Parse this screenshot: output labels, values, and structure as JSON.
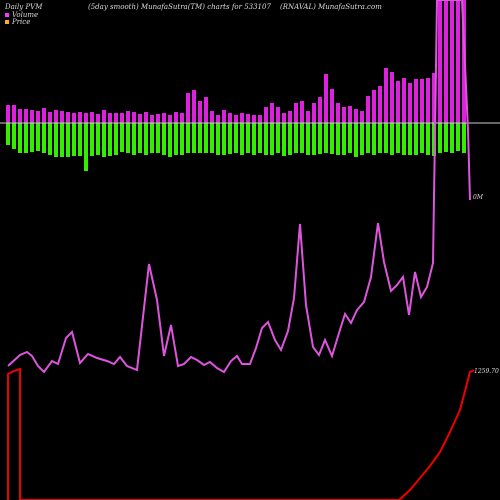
{
  "header": {
    "left": "Daily PVM",
    "mid": "(5day smooth) MunafaSutra(TM) charts for 533107",
    "right": "(RNAVAL) MunafaSutra.com"
  },
  "legend": [
    {
      "label": "Volume",
      "color": "#ff33ff"
    },
    {
      "label": "Price",
      "color": "#ffaa33"
    }
  ],
  "colors": {
    "background": "#000000",
    "volume_up": "#dd22dd",
    "volume_down": "#33ee00",
    "pvm_line": "#dd55dd",
    "price_line": "#ee0000",
    "zero_line": "#cccccc"
  },
  "chart_data": {
    "type": "bar",
    "volume_label": "0M",
    "price_label": "1259.70",
    "bars_up": [
      18,
      18,
      14,
      14,
      13,
      12,
      15,
      11,
      13,
      12,
      11,
      10,
      11,
      10,
      11,
      9,
      13,
      10,
      10,
      10,
      12,
      11,
      9,
      11,
      8,
      9,
      10,
      8,
      11,
      10,
      30,
      33,
      22,
      26,
      12,
      8,
      13,
      10,
      8,
      10,
      9,
      8,
      8,
      16,
      20,
      16,
      10,
      12,
      20,
      22,
      12,
      20,
      26,
      49,
      34,
      20,
      16,
      17,
      14,
      12,
      27,
      33,
      37,
      55,
      51,
      42,
      45,
      40,
      44,
      44,
      45,
      50,
      500,
      500,
      500,
      500,
      500
    ],
    "bars_down": [
      22,
      26,
      30,
      30,
      29,
      28,
      30,
      32,
      34,
      34,
      34,
      33,
      33,
      48,
      33,
      32,
      34,
      33,
      32,
      29,
      30,
      32,
      30,
      32,
      30,
      30,
      32,
      34,
      32,
      32,
      30,
      30,
      30,
      30,
      30,
      32,
      32,
      31,
      30,
      32,
      30,
      32,
      30,
      32,
      32,
      30,
      33,
      32,
      30,
      30,
      32,
      32,
      31,
      30,
      31,
      32,
      32,
      30,
      34,
      32,
      30,
      32,
      30,
      30,
      32,
      30,
      32,
      32,
      32,
      30,
      32,
      33,
      30,
      29,
      30,
      28,
      30
    ],
    "pvm_line": [
      [
        8,
        366
      ],
      [
        20,
        355
      ],
      [
        27,
        352
      ],
      [
        32,
        356
      ],
      [
        38,
        366
      ],
      [
        44,
        372
      ],
      [
        52,
        361
      ],
      [
        58,
        364
      ],
      [
        66,
        338
      ],
      [
        72,
        332
      ],
      [
        80,
        363
      ],
      [
        88,
        354
      ],
      [
        97,
        358
      ],
      [
        107,
        361
      ],
      [
        114,
        364
      ],
      [
        120,
        357
      ],
      [
        127,
        366
      ],
      [
        137,
        370
      ],
      [
        149,
        264
      ],
      [
        157,
        300
      ],
      [
        164,
        356
      ],
      [
        171,
        325
      ],
      [
        178,
        366
      ],
      [
        184,
        364
      ],
      [
        191,
        357
      ],
      [
        197,
        360
      ],
      [
        204,
        365
      ],
      [
        210,
        362
      ],
      [
        217,
        368
      ],
      [
        224,
        372
      ],
      [
        231,
        361
      ],
      [
        237,
        356
      ],
      [
        242,
        364
      ],
      [
        250,
        364
      ],
      [
        256,
        348
      ],
      [
        262,
        328
      ],
      [
        268,
        322
      ],
      [
        275,
        340
      ],
      [
        281,
        350
      ],
      [
        288,
        331
      ],
      [
        294,
        298
      ],
      [
        300,
        224
      ],
      [
        306,
        305
      ],
      [
        313,
        347
      ],
      [
        319,
        355
      ],
      [
        325,
        340
      ],
      [
        332,
        356
      ],
      [
        339,
        333
      ],
      [
        345,
        314
      ],
      [
        351,
        323
      ],
      [
        357,
        310
      ],
      [
        364,
        302
      ],
      [
        371,
        277
      ],
      [
        378,
        223
      ],
      [
        384,
        262
      ],
      [
        391,
        291
      ],
      [
        397,
        285
      ],
      [
        403,
        277
      ],
      [
        409,
        315
      ],
      [
        415,
        272
      ],
      [
        421,
        297
      ],
      [
        427,
        287
      ],
      [
        433,
        263
      ],
      [
        437,
        0
      ],
      [
        441,
        0
      ],
      [
        449,
        0
      ],
      [
        456,
        0
      ],
      [
        462,
        0
      ],
      [
        468,
        130
      ],
      [
        470,
        200
      ]
    ],
    "price_line": [
      [
        8,
        500
      ],
      [
        8,
        374
      ],
      [
        14,
        371
      ],
      [
        20,
        369
      ],
      [
        20,
        500
      ],
      [
        399,
        500
      ],
      [
        410,
        490
      ],
      [
        420,
        478
      ],
      [
        430,
        466
      ],
      [
        440,
        452
      ],
      [
        450,
        432
      ],
      [
        460,
        410
      ],
      [
        470,
        372
      ],
      [
        474,
        370
      ]
    ]
  }
}
